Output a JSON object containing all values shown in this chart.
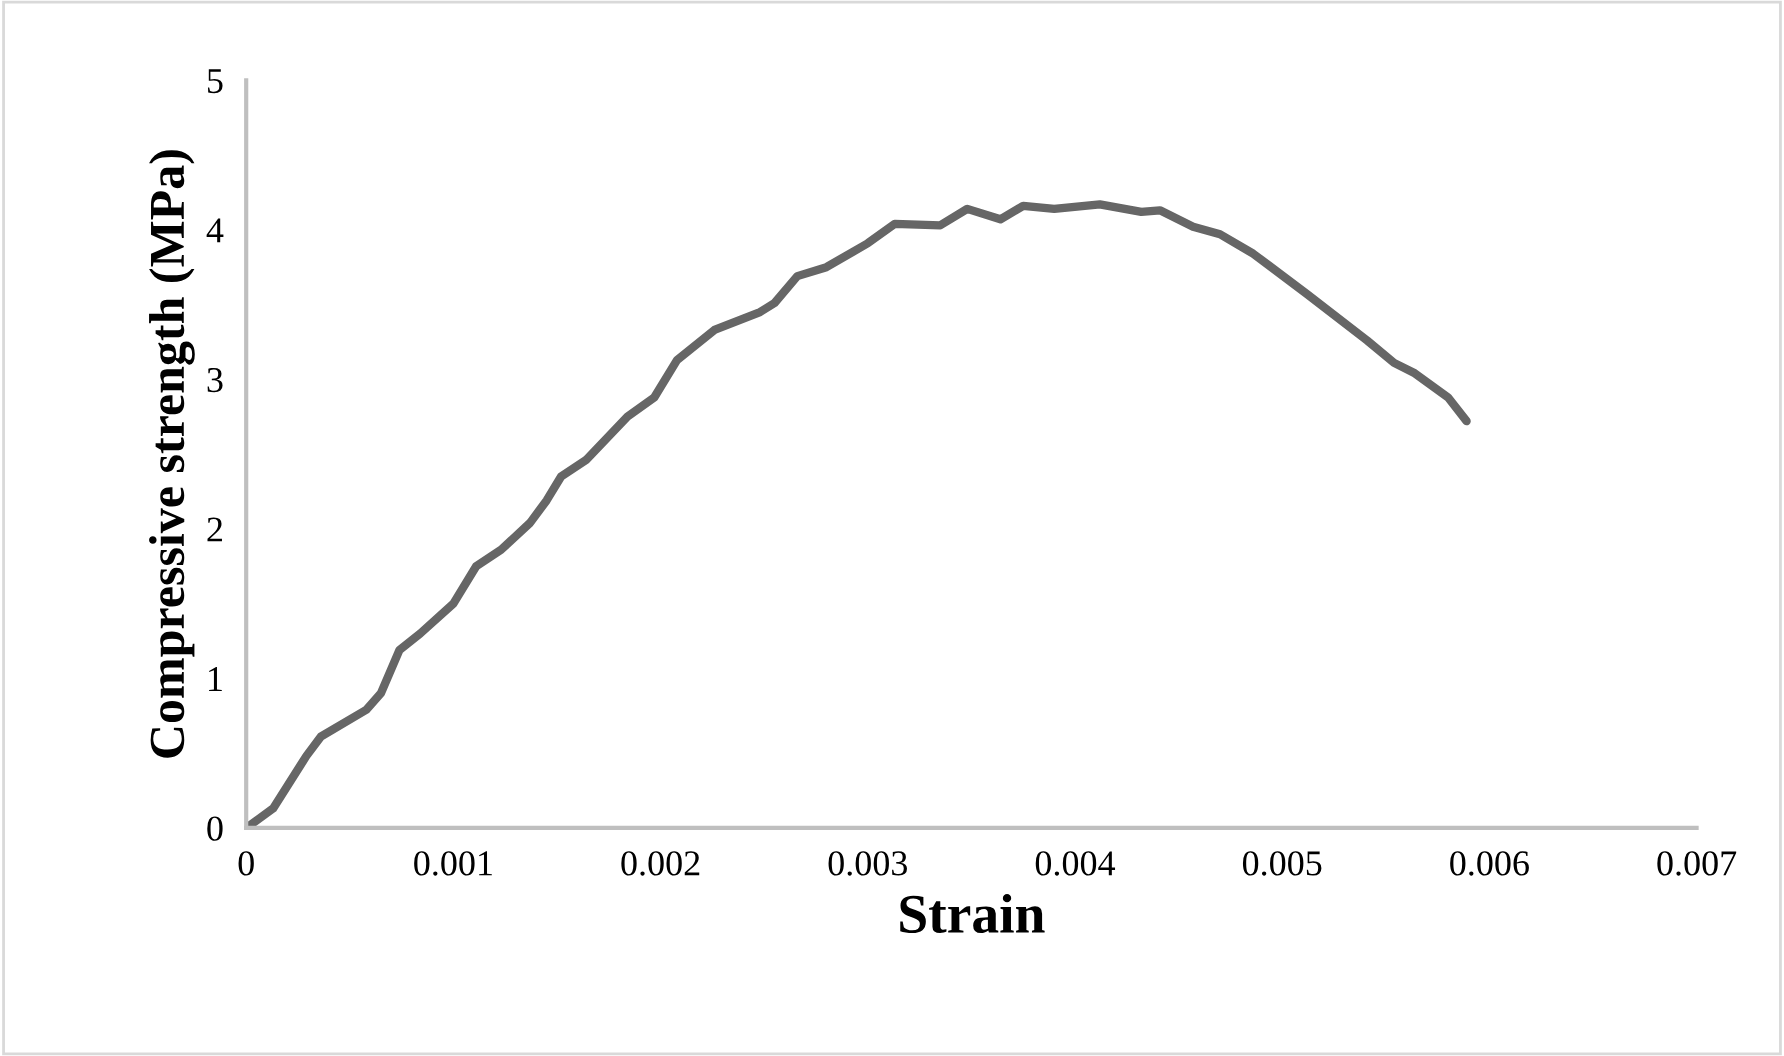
{
  "chart_data": {
    "type": "line",
    "xlabel": "Strain",
    "ylabel": "Compressive strength (MPa)",
    "series": [
      {
        "color": "#666666",
        "x": [
          0,
          0.00013,
          0.00029,
          0.00036,
          0.00058,
          0.00065,
          0.00074,
          0.00084,
          0.001,
          0.00111,
          0.00123,
          0.00137,
          0.00145,
          0.00152,
          0.00164,
          0.00184,
          0.00197,
          0.00208,
          0.00226,
          0.00248,
          0.00255,
          0.00266,
          0.0028,
          0.003,
          0.00313,
          0.00335,
          0.00348,
          0.00364,
          0.00375,
          0.0039,
          0.00412,
          0.00432,
          0.00441,
          0.00457,
          0.0047,
          0.00486,
          0.00512,
          0.00541,
          0.00554,
          0.00564,
          0.0058,
          0.00589
        ],
        "values": [
          0,
          0.13,
          0.48,
          0.61,
          0.79,
          0.9,
          1.19,
          1.3,
          1.5,
          1.75,
          1.86,
          2.04,
          2.19,
          2.35,
          2.46,
          2.75,
          2.88,
          3.13,
          3.33,
          3.45,
          3.51,
          3.69,
          3.75,
          3.91,
          4.04,
          4.03,
          4.14,
          4.07,
          4.16,
          4.14,
          4.17,
          4.12,
          4.13,
          4.02,
          3.97,
          3.84,
          3.57,
          3.26,
          3.11,
          3.04,
          2.88,
          2.72
        ]
      }
    ],
    "xlim": [
      0,
      0.007
    ],
    "xticks": [
      0,
      0.001,
      0.002,
      0.003,
      0.004,
      0.005,
      0.006,
      0.007
    ],
    "ylim": [
      0,
      5
    ],
    "yticks": [
      0,
      1,
      2,
      3,
      4,
      5
    ],
    "grid": false,
    "legend": false,
    "marker": "none",
    "line_style": "solid"
  }
}
